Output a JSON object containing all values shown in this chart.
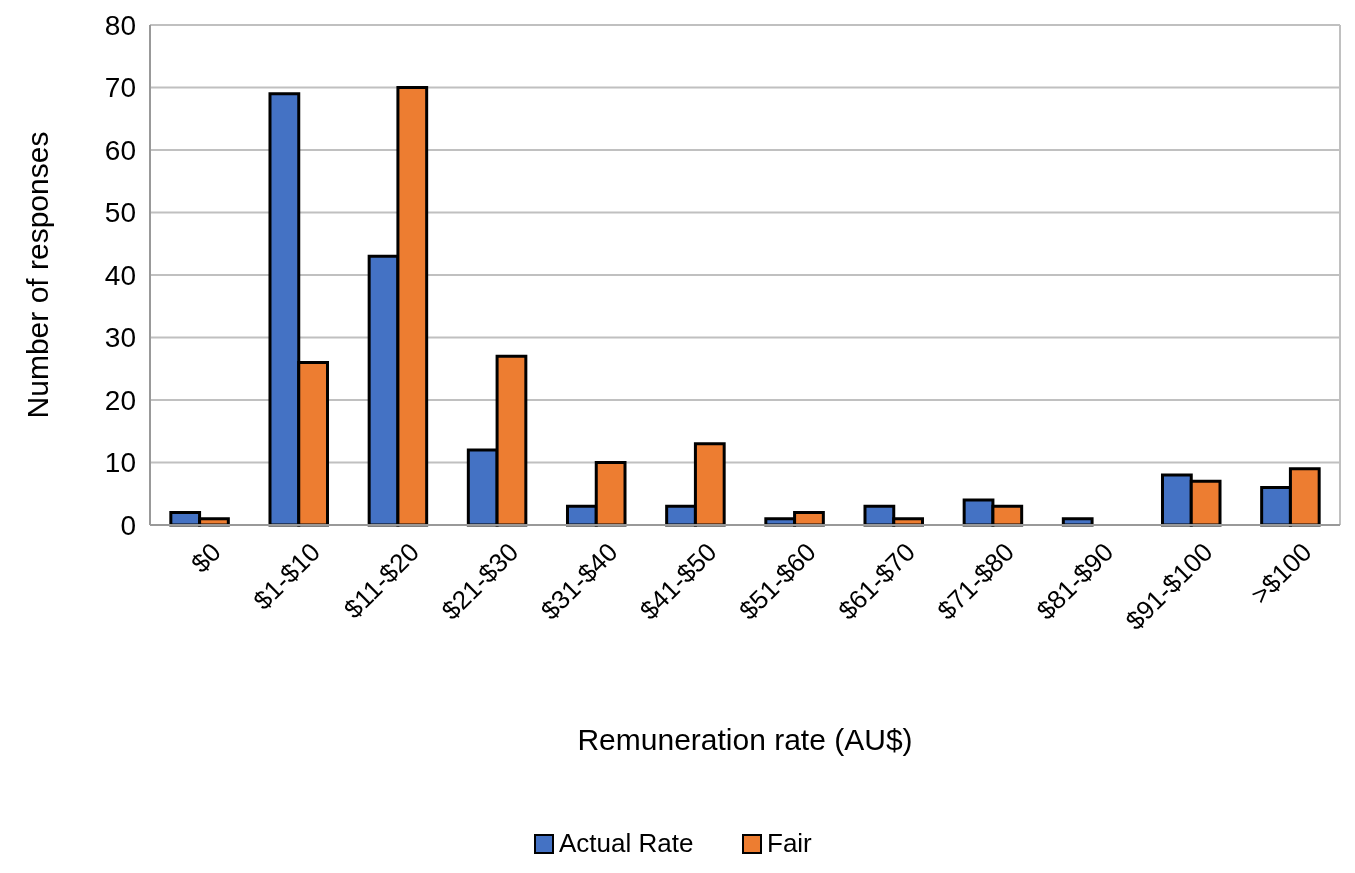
{
  "chart_data": {
    "type": "bar",
    "xlabel": "Remuneration rate (AU$)",
    "ylabel": "Number of responses",
    "categories": [
      "$0",
      "$1-$10",
      "$11-$20",
      "$21-$30",
      "$31-$40",
      "$41-$50",
      "$51-$60",
      "$61-$70",
      "$71-$80",
      "$81-$90",
      "$91-$100",
      ">$100"
    ],
    "series": [
      {
        "name": "Actual Rate",
        "color": "#4472c4",
        "values": [
          2,
          69,
          43,
          12,
          3,
          3,
          1,
          3,
          4,
          1,
          8,
          6
        ]
      },
      {
        "name": "Fair",
        "color": "#ed7d31",
        "values": [
          1,
          26,
          70,
          27,
          10,
          13,
          2,
          1,
          3,
          0,
          7,
          9
        ]
      }
    ],
    "ylim": [
      0,
      80
    ],
    "yticks": [
      0,
      10,
      20,
      30,
      40,
      50,
      60,
      70,
      80
    ],
    "grid": "y",
    "legend": "bottom"
  }
}
